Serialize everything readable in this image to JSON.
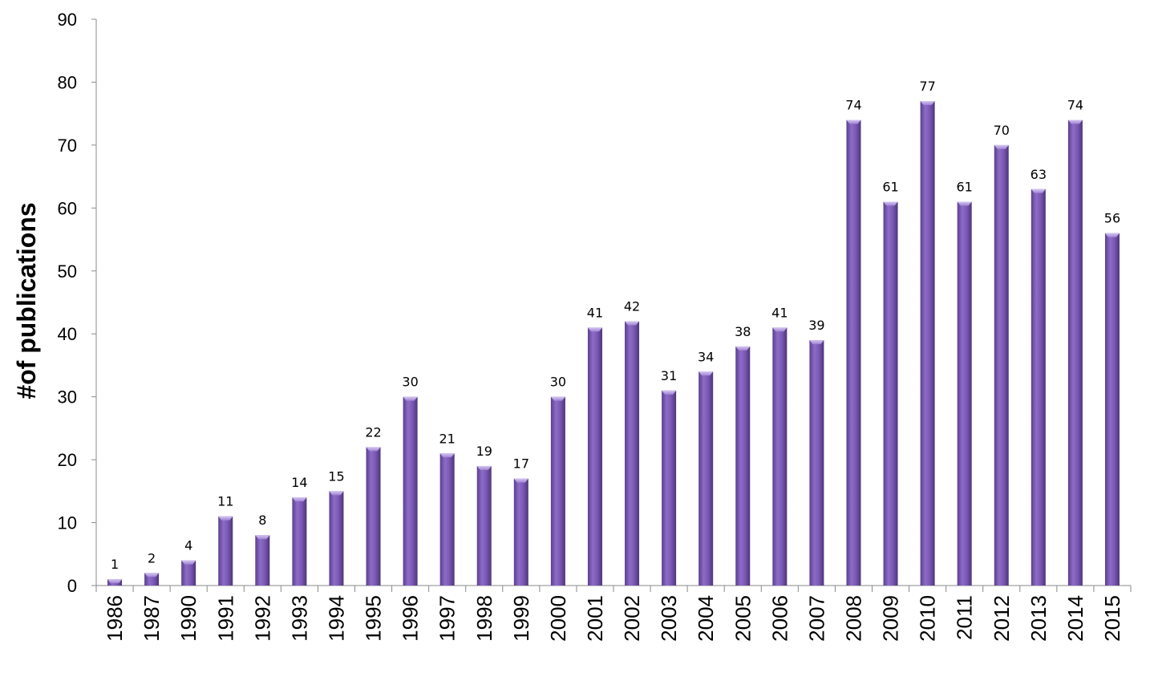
{
  "chart_data": {
    "type": "bar",
    "title": "",
    "xlabel": "",
    "ylabel": "#of publications",
    "ylim": [
      0,
      90
    ],
    "yticks": [
      0,
      10,
      20,
      30,
      40,
      50,
      60,
      70,
      80,
      90
    ],
    "grid": false,
    "legend": "none",
    "bar_color": "#7e5cb4",
    "categories": [
      "1986",
      "1987",
      "1990",
      "1991",
      "1992",
      "1993",
      "1994",
      "1995",
      "1996",
      "1997",
      "1998",
      "1999",
      "2000",
      "2001",
      "2002",
      "2003",
      "2004",
      "2005",
      "2006",
      "2007",
      "2008",
      "2009",
      "2010",
      "2011",
      "2012",
      "2013",
      "2014",
      "2015"
    ],
    "values": [
      1,
      2,
      4,
      11,
      8,
      14,
      15,
      22,
      30,
      21,
      19,
      17,
      30,
      41,
      42,
      31,
      34,
      38,
      41,
      39,
      74,
      61,
      77,
      61,
      70,
      63,
      74,
      56
    ]
  }
}
